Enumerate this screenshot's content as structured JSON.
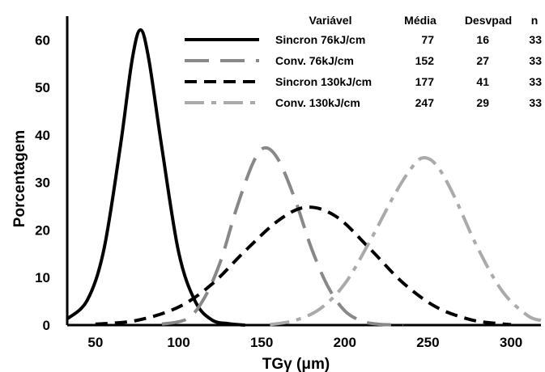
{
  "chart_data": {
    "type": "line",
    "xlabel": "TGγ (μm)",
    "ylabel": "Porcentagem",
    "xlim": [
      33,
      318
    ],
    "ylim": [
      0,
      65
    ],
    "x_ticks": [
      "50",
      "100",
      "150",
      "200",
      "250",
      "300"
    ],
    "y_ticks": [
      "0",
      "10",
      "20",
      "30",
      "40",
      "50",
      "60"
    ],
    "grid": false,
    "legend_position": "top-right",
    "legend_headers": {
      "variable": "Variável",
      "mean": "Média",
      "stdev": "Desvpad",
      "n": "n"
    },
    "series": [
      {
        "name": "Sincron 76kJ/cm",
        "mean": "77",
        "stdev": "16",
        "n": "33",
        "color": "#000000",
        "dash": "solid",
        "x": [
          33,
          45,
          55,
          65,
          72,
          77,
          82,
          90,
          100,
          110,
          120,
          130,
          140
        ],
        "y": [
          1.3,
          5.2,
          15.8,
          37.7,
          55.7,
          62.1,
          56.1,
          37.2,
          15.4,
          5.0,
          1.1,
          0.3,
          0.0
        ]
      },
      {
        "name": "Conv. 76kJ/cm",
        "mean": "152",
        "stdev": "27",
        "n": "33",
        "color": "#888888",
        "dash": "long",
        "x": [
          90,
          105,
          115,
          125,
          135,
          145,
          152,
          160,
          170,
          180,
          190,
          200,
          210,
          220,
          235
        ],
        "y": [
          0.2,
          1.3,
          5.4,
          13.2,
          24.7,
          34.3,
          37.3,
          34.8,
          26.5,
          16.1,
          8.0,
          3.0,
          0.9,
          0.2,
          0.0
        ]
      },
      {
        "name": "Sincron 130kJ/cm",
        "mean": "177",
        "stdev": "41",
        "n": "33",
        "color": "#000000",
        "dash": "short",
        "x": [
          50,
          75,
          100,
          120,
          140,
          160,
          177,
          195,
          215,
          235,
          255,
          275,
          290,
          300
        ],
        "y": [
          0.2,
          1.0,
          3.8,
          8.6,
          15.6,
          22.0,
          24.8,
          22.8,
          16.1,
          8.9,
          3.8,
          1.2,
          0.4,
          0.1
        ]
      },
      {
        "name": "Conv. 130kJ/cm",
        "mean": "247",
        "stdev": "29",
        "n": "33",
        "color": "#aaaaaa",
        "dash": "dashdot",
        "x": [
          155,
          170,
          185,
          200,
          215,
          230,
          240,
          247,
          255,
          265,
          280,
          295,
          310,
          318
        ],
        "y": [
          0.1,
          1.0,
          3.4,
          8.7,
          17.6,
          27.5,
          33.0,
          35.2,
          33.7,
          27.7,
          16.2,
          7.0,
          2.0,
          1.0
        ]
      }
    ]
  }
}
